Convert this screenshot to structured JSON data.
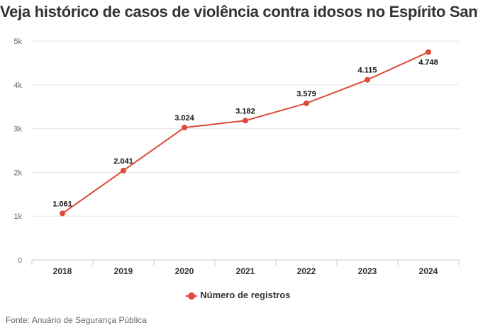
{
  "title": "Veja histórico de casos de violência contra idosos no Espírito Santo",
  "source": "Fonte: Anuário de Segurança Pública",
  "colors": {
    "series": "#dd4b39",
    "grid": "#e6e6e6",
    "axis": "#cccccc"
  },
  "chart_data": {
    "type": "line",
    "title": "Veja histórico de casos de violência contra idosos no Espírito Santo",
    "xlabel": "",
    "ylabel": "",
    "categories": [
      "2018",
      "2019",
      "2020",
      "2021",
      "2022",
      "2023",
      "2024"
    ],
    "series": [
      {
        "name": "Número de registros",
        "values": [
          1061,
          2041,
          3024,
          3182,
          3579,
          4115,
          4748
        ],
        "labels": [
          "1.061",
          "2.041",
          "3.024",
          "3.182",
          "3.579",
          "4.115",
          "4.748"
        ]
      }
    ],
    "ylim": [
      0,
      5000
    ],
    "yticks": [
      0,
      1000,
      2000,
      3000,
      4000,
      5000
    ],
    "ytick_labels": [
      "0",
      "1k",
      "2k",
      "3k",
      "4k",
      "5k"
    ],
    "grid": true,
    "legend": "bottom-center"
  }
}
